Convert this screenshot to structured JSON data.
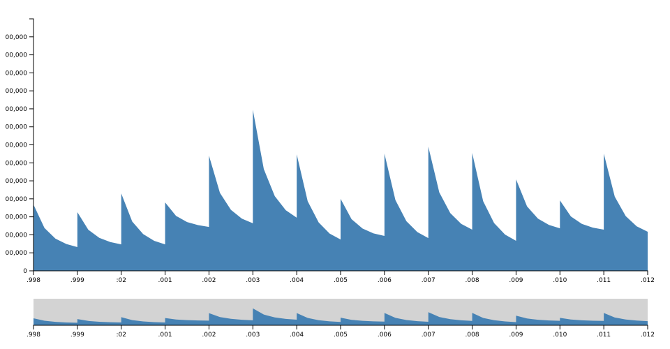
{
  "chart_data": {
    "type": "area",
    "x": [
      0,
      0.25,
      0.5,
      0.75,
      1,
      1,
      1.25,
      1.5,
      1.75,
      2,
      2,
      2.25,
      2.5,
      2.75,
      3,
      3,
      3.25,
      3.5,
      3.75,
      4,
      4,
      4.25,
      4.5,
      4.75,
      5,
      5,
      5.25,
      5.5,
      5.75,
      6,
      6,
      6.25,
      6.5,
      6.75,
      7,
      7,
      7.25,
      7.5,
      7.75,
      8,
      8,
      8.25,
      8.5,
      8.75,
      9,
      9,
      9.25,
      9.5,
      9.75,
      10,
      10,
      10.25,
      10.5,
      10.75,
      11,
      11,
      11.25,
      11.5,
      11.75,
      12,
      12,
      12.25,
      12.5,
      12.75,
      13,
      13,
      13.25,
      13.5,
      13.75,
      14
    ],
    "series": [
      {
        "color": "#4682b4",
        "values": [
          368000,
          238000,
          179000,
          149000,
          132000,
          326000,
          228000,
          183000,
          160000,
          147000,
          430000,
          274000,
          204000,
          167000,
          147000,
          380000,
          305000,
          271000,
          254000,
          244000,
          640000,
          433000,
          339000,
          290000,
          264000,
          895000,
          565000,
          415000,
          337000,
          295000,
          647000,
          387000,
          269000,
          207000,
          174000,
          400000,
          287000,
          235000,
          208000,
          194000,
          651000,
          393000,
          276000,
          215000,
          182000,
          690000,
          436000,
          321000,
          261000,
          229000,
          655000,
          387000,
          265000,
          201000,
          167000,
          508000,
          358000,
          290000,
          255000,
          236000,
          391000,
          302000,
          261000,
          240000,
          229000,
          651000,
          412000,
          304000,
          247000,
          217000
        ]
      }
    ],
    "xlim": [
      0,
      14
    ],
    "xticks": [
      {
        "value": 0,
        "label": ".998"
      },
      {
        "value": 1,
        "label": ".999"
      },
      {
        "value": 2,
        "label": ":02"
      },
      {
        "value": 3,
        "label": ".001"
      },
      {
        "value": 4,
        "label": ".002"
      },
      {
        "value": 5,
        "label": ".003"
      },
      {
        "value": 6,
        "label": ".004"
      },
      {
        "value": 7,
        "label": ".005"
      },
      {
        "value": 8,
        "label": ".006"
      },
      {
        "value": 9,
        "label": ".007"
      },
      {
        "value": 10,
        "label": ".008"
      },
      {
        "value": 11,
        "label": ".009"
      },
      {
        "value": 12,
        "label": ".010"
      },
      {
        "value": 13,
        "label": ".011"
      },
      {
        "value": 14,
        "label": ".012"
      }
    ],
    "ylim": [
      0,
      1400000
    ],
    "yticks": [
      0,
      {
        "value": 100000,
        "label": "00,000"
      },
      {
        "value": 200000,
        "label": "00,000"
      },
      {
        "value": 300000,
        "label": "00,000"
      },
      {
        "value": 400000,
        "label": "00,000"
      },
      {
        "value": 500000,
        "label": "00,000"
      },
      {
        "value": 600000,
        "label": "00,000"
      },
      {
        "value": 700000,
        "label": "00,000"
      },
      {
        "value": 800000,
        "label": "00,000"
      },
      {
        "value": 900000,
        "label": "00,000"
      },
      {
        "value": 1000000,
        "label": "00,000"
      },
      {
        "value": 1100000,
        "label": "00,000"
      },
      {
        "value": 1200000,
        "label": "00,000"
      },
      {
        "value": 1300000,
        "label": "00,000"
      }
    ],
    "brush_color": "#d3d3d3"
  }
}
